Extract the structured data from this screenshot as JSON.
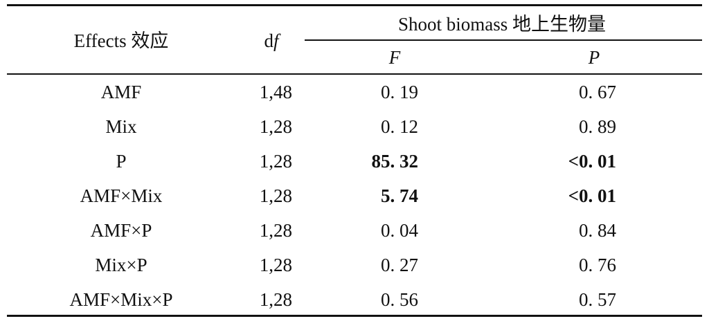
{
  "header": {
    "effects_label": "Effects 效应",
    "df_label": "df",
    "group_label": "Shoot biomass 地上生物量",
    "f_label": "F",
    "p_label": "P"
  },
  "rows": [
    {
      "effect": "AMF",
      "df": "1,48",
      "f": "0. 19",
      "p": "0. 67"
    },
    {
      "effect": "Mix",
      "df": "1,28",
      "f": "0. 12",
      "p": "0. 89"
    },
    {
      "effect": "P",
      "df": "1,28",
      "f": "85. 32",
      "p": "<0. 01"
    },
    {
      "effect": "AMF×Mix",
      "df": "1,28",
      "f": "5. 74",
      "p": "<0. 01"
    },
    {
      "effect": "AMF×P",
      "df": "1,28",
      "f": "0. 04",
      "p": "0. 84"
    },
    {
      "effect": "Mix×P",
      "df": "1,28",
      "f": "0. 27",
      "p": "0. 76"
    },
    {
      "effect": "AMF×Mix×P",
      "df": "1,28",
      "f": "0. 56",
      "p": "0. 57"
    }
  ]
}
